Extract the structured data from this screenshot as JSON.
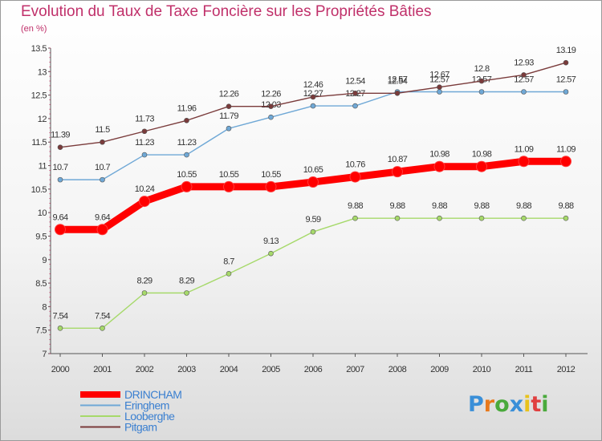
{
  "title": "Evolution du Taux de Taxe Foncière sur les Propriétés Bâties",
  "unit_label": "(en %)",
  "logo": {
    "text": "Proxiti",
    "letters": [
      {
        "ch": "P",
        "color": "#3a8fd8"
      },
      {
        "ch": "r",
        "color": "#e8791c"
      },
      {
        "ch": "o",
        "color": "#4aaa3c"
      },
      {
        "ch": "x",
        "color": "#3a8fd8"
      },
      {
        "ch": "i",
        "color": "#e8c21c"
      },
      {
        "ch": "t",
        "color": "#e04040"
      },
      {
        "ch": "i",
        "color": "#4aaa3c"
      }
    ]
  },
  "chart_data": {
    "type": "line",
    "x": [
      "2000",
      "2001",
      "2002",
      "2003",
      "2004",
      "2005",
      "2006",
      "2007",
      "2008",
      "2009",
      "2010",
      "2011",
      "2012"
    ],
    "ylim": [
      7,
      13.5
    ],
    "yticks": [
      "7",
      "7.5",
      "8",
      "8.5",
      "9",
      "9.5",
      "10",
      "10.5",
      "11",
      "11.5",
      "12",
      "12.5",
      "13",
      "13.5"
    ],
    "grid": false,
    "legend_position": "bottom-left",
    "series": [
      {
        "name": "DRINCHAM",
        "color": "#ff0000",
        "emphasis": true,
        "values": [
          9.64,
          9.64,
          10.24,
          10.55,
          10.55,
          10.55,
          10.65,
          10.76,
          10.87,
          10.98,
          10.98,
          11.09,
          11.09
        ],
        "labels": [
          "9.64",
          "9.64",
          "10.24",
          "10.55",
          "10.55",
          "10.55",
          "10.65",
          "10.76",
          "10.87",
          "10.98",
          "10.98",
          "11.09",
          "11.09"
        ]
      },
      {
        "name": "Eringhem",
        "color": "#6fa8d6",
        "emphasis": false,
        "values": [
          10.7,
          10.7,
          11.23,
          11.23,
          11.79,
          12.03,
          12.27,
          12.27,
          12.57,
          12.57,
          12.57,
          12.57,
          12.57
        ],
        "labels": [
          "10.7",
          "10.7",
          "11.23",
          "11.23",
          "11.79",
          "12.03",
          "12.27",
          "12.27",
          "12.57",
          "12.57",
          "12.57",
          "12.57",
          "12.57"
        ]
      },
      {
        "name": "Looberghe",
        "color": "#a6d96a",
        "emphasis": false,
        "values": [
          7.54,
          7.54,
          8.29,
          8.29,
          8.7,
          9.13,
          9.59,
          9.88,
          9.88,
          9.88,
          9.88,
          9.88,
          9.88
        ],
        "labels": [
          "7.54",
          "7.54",
          "8.29",
          "8.29",
          "8.7",
          "9.13",
          "9.59",
          "9.88",
          "9.88",
          "9.88",
          "9.88",
          "9.88",
          "9.88"
        ]
      },
      {
        "name": "Pitgam",
        "color": "#7a3b3b",
        "emphasis": false,
        "values": [
          11.39,
          11.5,
          11.73,
          11.96,
          12.26,
          12.26,
          12.46,
          12.54,
          12.54,
          12.67,
          12.8,
          12.93,
          13.19
        ],
        "labels": [
          "11.39",
          "11.5",
          "11.73",
          "11.96",
          "12.26",
          "12.26",
          "12.46",
          "12.54",
          "12.54",
          "12.67",
          "12.8",
          "12.93",
          "13.19"
        ]
      }
    ]
  }
}
